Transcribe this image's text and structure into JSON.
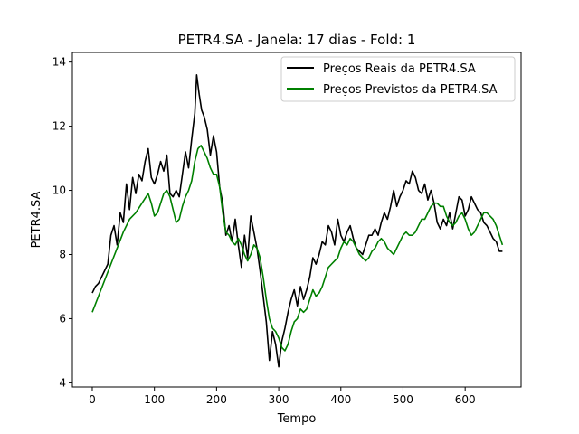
{
  "chart_data": {
    "type": "line",
    "title": "PETR4.SA - Janela: 17 dias - Fold: 1",
    "xlabel": "Tempo",
    "ylabel": "PETR4.SA",
    "xlim": [
      -32,
      690
    ],
    "ylim": [
      3.87,
      14.3
    ],
    "xticks": [
      0,
      100,
      200,
      300,
      400,
      500,
      600
    ],
    "yticks": [
      4,
      6,
      8,
      10,
      12,
      14
    ],
    "legend_position": "upper right",
    "series": [
      {
        "name": "Preços Reais da PETR4.SA",
        "color": "#000000",
        "x": [
          0,
          5,
          10,
          15,
          20,
          25,
          30,
          35,
          40,
          45,
          50,
          55,
          60,
          65,
          70,
          75,
          80,
          85,
          90,
          95,
          100,
          105,
          110,
          115,
          120,
          125,
          130,
          135,
          140,
          145,
          150,
          155,
          160,
          165,
          168,
          172,
          176,
          180,
          185,
          190,
          195,
          200,
          205,
          210,
          215,
          220,
          225,
          230,
          235,
          240,
          245,
          250,
          255,
          260,
          265,
          270,
          275,
          280,
          285,
          290,
          295,
          300,
          305,
          310,
          315,
          320,
          325,
          330,
          335,
          340,
          345,
          350,
          355,
          360,
          365,
          370,
          375,
          380,
          385,
          390,
          395,
          400,
          405,
          410,
          415,
          420,
          425,
          430,
          435,
          440,
          445,
          450,
          455,
          460,
          465,
          470,
          475,
          480,
          485,
          490,
          495,
          500,
          505,
          510,
          515,
          520,
          525,
          530,
          535,
          540,
          545,
          550,
          555,
          560,
          565,
          570,
          575,
          580,
          585,
          590,
          595,
          600,
          605,
          610,
          615,
          620,
          625,
          630,
          635,
          640,
          645,
          650,
          655,
          660
        ],
        "y": [
          6.8,
          7.0,
          7.1,
          7.3,
          7.5,
          7.7,
          8.6,
          8.9,
          8.3,
          9.3,
          9.0,
          10.2,
          9.4,
          10.4,
          9.9,
          10.5,
          10.3,
          10.9,
          11.3,
          10.4,
          10.2,
          10.5,
          10.9,
          10.6,
          11.1,
          9.9,
          9.8,
          10.0,
          9.8,
          10.5,
          11.2,
          10.7,
          11.6,
          12.4,
          13.6,
          13.0,
          12.5,
          12.3,
          11.9,
          11.1,
          11.7,
          11.2,
          10.1,
          9.6,
          8.6,
          8.9,
          8.4,
          9.1,
          8.3,
          7.6,
          8.6,
          7.9,
          9.2,
          8.7,
          8.2,
          7.5,
          6.7,
          5.9,
          4.7,
          5.6,
          5.2,
          4.5,
          5.3,
          5.7,
          6.2,
          6.6,
          6.9,
          6.4,
          7.0,
          6.6,
          6.9,
          7.3,
          7.9,
          7.7,
          8.0,
          8.4,
          8.3,
          8.9,
          8.7,
          8.3,
          9.1,
          8.6,
          8.4,
          8.7,
          8.9,
          8.5,
          8.2,
          8.1,
          8.0,
          8.3,
          8.6,
          8.6,
          8.8,
          8.6,
          9.0,
          9.3,
          9.1,
          9.5,
          10.0,
          9.5,
          9.8,
          10.0,
          10.3,
          10.2,
          10.6,
          10.4,
          10.0,
          9.9,
          10.2,
          9.7,
          10.0,
          9.6,
          9.0,
          8.8,
          9.1,
          8.9,
          9.3,
          8.8,
          9.3,
          9.8,
          9.7,
          9.2,
          9.4,
          9.8,
          9.6,
          9.4,
          9.3,
          9.0,
          8.9,
          8.7,
          8.5,
          8.4,
          8.1,
          8.1
        ]
      },
      {
        "name": "Preços Previstos da PETR4.SA",
        "color": "#008000",
        "x": [
          0,
          10,
          20,
          30,
          40,
          50,
          60,
          70,
          80,
          90,
          95,
          100,
          105,
          110,
          115,
          120,
          125,
          130,
          135,
          140,
          145,
          150,
          155,
          160,
          165,
          170,
          175,
          180,
          185,
          190,
          195,
          200,
          205,
          210,
          215,
          220,
          225,
          230,
          235,
          240,
          245,
          250,
          255,
          260,
          265,
          270,
          275,
          280,
          285,
          290,
          295,
          300,
          305,
          310,
          315,
          320,
          325,
          330,
          335,
          340,
          345,
          350,
          355,
          360,
          365,
          370,
          375,
          380,
          385,
          390,
          395,
          400,
          405,
          410,
          415,
          420,
          425,
          430,
          435,
          440,
          445,
          450,
          455,
          460,
          465,
          470,
          475,
          480,
          485,
          490,
          495,
          500,
          505,
          510,
          515,
          520,
          525,
          530,
          535,
          540,
          545,
          550,
          555,
          560,
          565,
          570,
          575,
          580,
          585,
          590,
          595,
          600,
          605,
          610,
          615,
          620,
          625,
          630,
          635,
          640,
          645,
          650,
          655,
          660
        ],
        "y": [
          6.2,
          6.7,
          7.2,
          7.7,
          8.2,
          8.7,
          9.1,
          9.3,
          9.6,
          9.9,
          9.6,
          9.2,
          9.3,
          9.6,
          9.9,
          10.0,
          9.8,
          9.4,
          9.0,
          9.1,
          9.5,
          9.8,
          10.0,
          10.3,
          10.9,
          11.3,
          11.4,
          11.2,
          11.0,
          10.7,
          10.5,
          10.5,
          10.1,
          9.3,
          8.7,
          8.6,
          8.4,
          8.3,
          8.5,
          8.3,
          8.0,
          7.8,
          8.0,
          8.3,
          8.2,
          7.9,
          7.3,
          6.6,
          6.0,
          5.7,
          5.6,
          5.4,
          5.1,
          5.0,
          5.2,
          5.6,
          5.9,
          6.0,
          6.3,
          6.2,
          6.3,
          6.6,
          6.9,
          6.7,
          6.8,
          7.0,
          7.3,
          7.6,
          7.7,
          7.8,
          7.9,
          8.2,
          8.4,
          8.3,
          8.5,
          8.4,
          8.2,
          8.0,
          7.9,
          7.8,
          7.9,
          8.1,
          8.2,
          8.4,
          8.5,
          8.4,
          8.2,
          8.1,
          8.0,
          8.2,
          8.4,
          8.6,
          8.7,
          8.6,
          8.6,
          8.7,
          8.9,
          9.1,
          9.1,
          9.3,
          9.5,
          9.6,
          9.6,
          9.5,
          9.5,
          9.2,
          9.0,
          8.9,
          9.0,
          9.2,
          9.3,
          9.1,
          8.8,
          8.6,
          8.7,
          8.9,
          9.1,
          9.3,
          9.3,
          9.2,
          9.1,
          8.9,
          8.6,
          8.3
        ]
      }
    ]
  }
}
